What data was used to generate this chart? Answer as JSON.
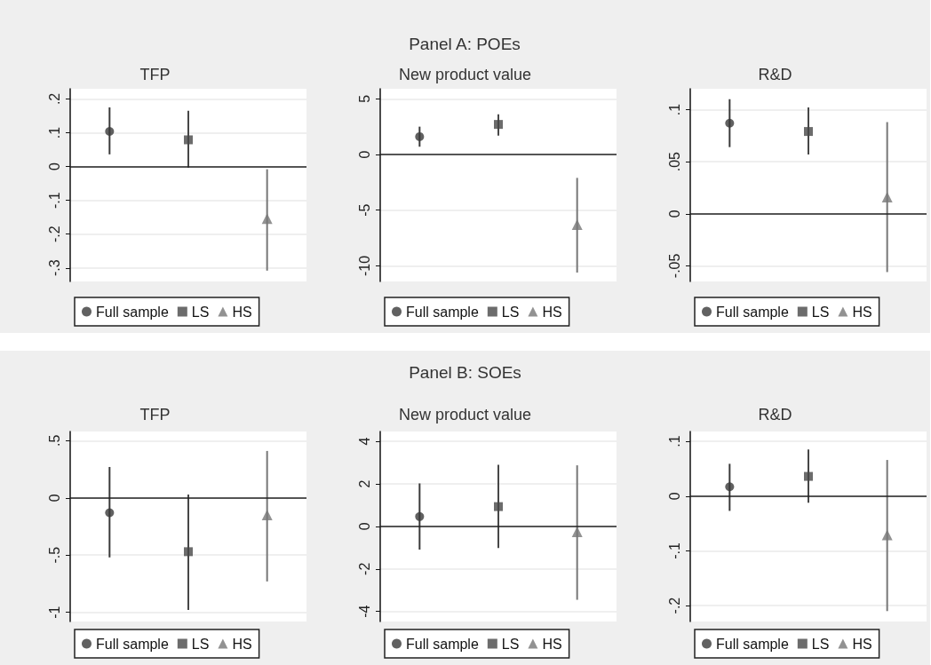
{
  "chart_data": [
    {
      "type": "scatter",
      "title": "TFP",
      "categories": [
        null,
        null,
        null
      ],
      "ylim": [
        -0.34,
        0.23
      ],
      "yticks": [
        {
          "value": -0.3,
          "label": "-.3"
        },
        {
          "value": -0.2,
          "label": "-.2"
        },
        {
          "value": -0.1,
          "label": "-.1"
        },
        0,
        {
          "value": 0.1,
          "label": ".1"
        },
        {
          "value": 0.2,
          "label": ".2"
        }
      ],
      "grid": "y",
      "legend": "bottom",
      "tick_labels": "y",
      "ref_lines": [
        {
          "axis": "y",
          "value": 0,
          "color": "#222222"
        }
      ],
      "series": [
        {
          "name": "Full sample",
          "color": "#3a3a3a",
          "marker": "circle",
          "values": [
            0.104,
            null,
            null
          ],
          "errors": [
            [
              0.036,
              0.175
            ],
            null,
            null
          ]
        },
        {
          "name": "LS",
          "color": "#474747",
          "marker": "square",
          "values": [
            null,
            0.079,
            null
          ],
          "errors": [
            null,
            [
              -0.003,
              0.165
            ],
            null
          ]
        },
        {
          "name": "HS",
          "color": "#777777",
          "marker": "triangle",
          "values": [
            null,
            null,
            -0.154
          ],
          "errors": [
            null,
            null,
            [
              -0.308,
              -0.008
            ]
          ]
        }
      ]
    },
    {
      "type": "scatter",
      "title": "New product value",
      "annotations": [
        "Panel A: POEs"
      ],
      "categories": [
        null,
        null,
        null
      ],
      "ylim": [
        -11.4,
        5.9
      ],
      "yticks": [
        -10,
        -5,
        0,
        5
      ],
      "grid": "y",
      "legend": "bottom",
      "tick_labels": "y",
      "ref_lines": [
        {
          "axis": "y",
          "value": 0,
          "color": "#222222"
        }
      ],
      "series": [
        {
          "name": "Full sample",
          "color": "#3a3a3a",
          "marker": "circle",
          "values": [
            1.6,
            null,
            null
          ],
          "errors": [
            [
              0.7,
              2.5
            ],
            null,
            null
          ]
        },
        {
          "name": "LS",
          "color": "#474747",
          "marker": "square",
          "values": [
            null,
            2.7,
            null
          ],
          "errors": [
            null,
            [
              1.7,
              3.6
            ],
            null
          ]
        },
        {
          "name": "HS",
          "color": "#777777",
          "marker": "triangle",
          "values": [
            null,
            null,
            -6.3
          ],
          "errors": [
            null,
            null,
            [
              -10.6,
              -2.1
            ]
          ]
        }
      ]
    },
    {
      "type": "scatter",
      "title": "R&D",
      "categories": [
        null,
        null,
        null
      ],
      "ylim": [
        -0.065,
        0.12
      ],
      "yticks": [
        {
          "value": -0.05,
          "label": "-.05"
        },
        0,
        {
          "value": 0.05,
          "label": ".05"
        },
        {
          "value": 0.1,
          "label": ".1"
        }
      ],
      "grid": "y",
      "legend": "bottom",
      "tick_labels": "y",
      "ref_lines": [
        {
          "axis": "y",
          "value": 0,
          "color": "#222222"
        }
      ],
      "series": [
        {
          "name": "Full sample",
          "color": "#3a3a3a",
          "marker": "circle",
          "values": [
            0.087,
            null,
            null
          ],
          "errors": [
            [
              0.064,
              0.11
            ],
            null,
            null
          ]
        },
        {
          "name": "LS",
          "color": "#474747",
          "marker": "square",
          "values": [
            null,
            0.079,
            null
          ],
          "errors": [
            null,
            [
              0.057,
              0.102
            ],
            null
          ]
        },
        {
          "name": "HS",
          "color": "#777777",
          "marker": "triangle",
          "values": [
            null,
            null,
            0.016
          ],
          "errors": [
            null,
            null,
            [
              -0.056,
              0.088
            ]
          ]
        }
      ]
    },
    {
      "type": "scatter",
      "title": "TFP",
      "categories": [
        null,
        null,
        null
      ],
      "ylim": [
        -1.08,
        0.58
      ],
      "yticks": [
        -1,
        {
          "value": -0.5,
          "label": "-.5"
        },
        0,
        {
          "value": 0.5,
          "label": ".5"
        }
      ],
      "grid": "y",
      "legend": "bottom",
      "tick_labels": "y",
      "ref_lines": [
        {
          "axis": "y",
          "value": 0,
          "color": "#222222"
        }
      ],
      "series": [
        {
          "name": "Full sample",
          "color": "#3a3a3a",
          "marker": "circle",
          "values": [
            -0.13,
            null,
            null
          ],
          "errors": [
            [
              -0.52,
              0.27
            ],
            null,
            null
          ]
        },
        {
          "name": "LS",
          "color": "#474747",
          "marker": "square",
          "values": [
            null,
            -0.47,
            null
          ],
          "errors": [
            null,
            [
              -0.98,
              0.03
            ],
            null
          ]
        },
        {
          "name": "HS",
          "color": "#777777",
          "marker": "triangle",
          "values": [
            null,
            null,
            -0.15
          ],
          "errors": [
            null,
            null,
            [
              -0.73,
              0.41
            ]
          ]
        }
      ]
    },
    {
      "type": "scatter",
      "title": "New product value",
      "annotations": [
        "Panel B: SOEs"
      ],
      "categories": [
        null,
        null,
        null
      ],
      "ylim": [
        -4.47,
        4.46
      ],
      "yticks": [
        -4,
        -2,
        0,
        2,
        4
      ],
      "grid": "y",
      "legend": "bottom",
      "tick_labels": "y",
      "ref_lines": [
        {
          "axis": "y",
          "value": 0,
          "color": "#222222"
        }
      ],
      "series": [
        {
          "name": "Full sample",
          "color": "#3a3a3a",
          "marker": "circle",
          "values": [
            0.46,
            null,
            null
          ],
          "errors": [
            [
              -1.09,
              2.02
            ],
            null,
            null
          ]
        },
        {
          "name": "LS",
          "color": "#474747",
          "marker": "square",
          "values": [
            null,
            0.93,
            null
          ],
          "errors": [
            null,
            [
              -1.02,
              2.9
            ],
            null
          ]
        },
        {
          "name": "HS",
          "color": "#777777",
          "marker": "triangle",
          "values": [
            null,
            null,
            -0.26
          ],
          "errors": [
            null,
            null,
            [
              -3.45,
              2.87
            ]
          ]
        }
      ]
    },
    {
      "type": "scatter",
      "title": "R&D",
      "categories": [
        null,
        null,
        null
      ],
      "ylim": [
        -0.229,
        0.118
      ],
      "yticks": [
        {
          "value": -0.2,
          "label": "-.2"
        },
        {
          "value": -0.1,
          "label": "-.1"
        },
        0,
        {
          "value": 0.1,
          "label": ".1"
        }
      ],
      "grid": "y",
      "legend": "bottom",
      "tick_labels": "y",
      "ref_lines": [
        {
          "axis": "y",
          "value": 0,
          "color": "#222222"
        }
      ],
      "series": [
        {
          "name": "Full sample",
          "color": "#3a3a3a",
          "marker": "circle",
          "values": [
            0.017,
            null,
            null
          ],
          "errors": [
            [
              -0.027,
              0.059
            ],
            null,
            null
          ]
        },
        {
          "name": "LS",
          "color": "#474747",
          "marker": "square",
          "values": [
            null,
            0.036,
            null
          ],
          "errors": [
            null,
            [
              -0.012,
              0.085
            ],
            null
          ]
        },
        {
          "name": "HS",
          "color": "#777777",
          "marker": "triangle",
          "values": [
            null,
            null,
            -0.071
          ],
          "errors": [
            null,
            null,
            [
              -0.21,
              0.066
            ]
          ]
        }
      ]
    }
  ]
}
